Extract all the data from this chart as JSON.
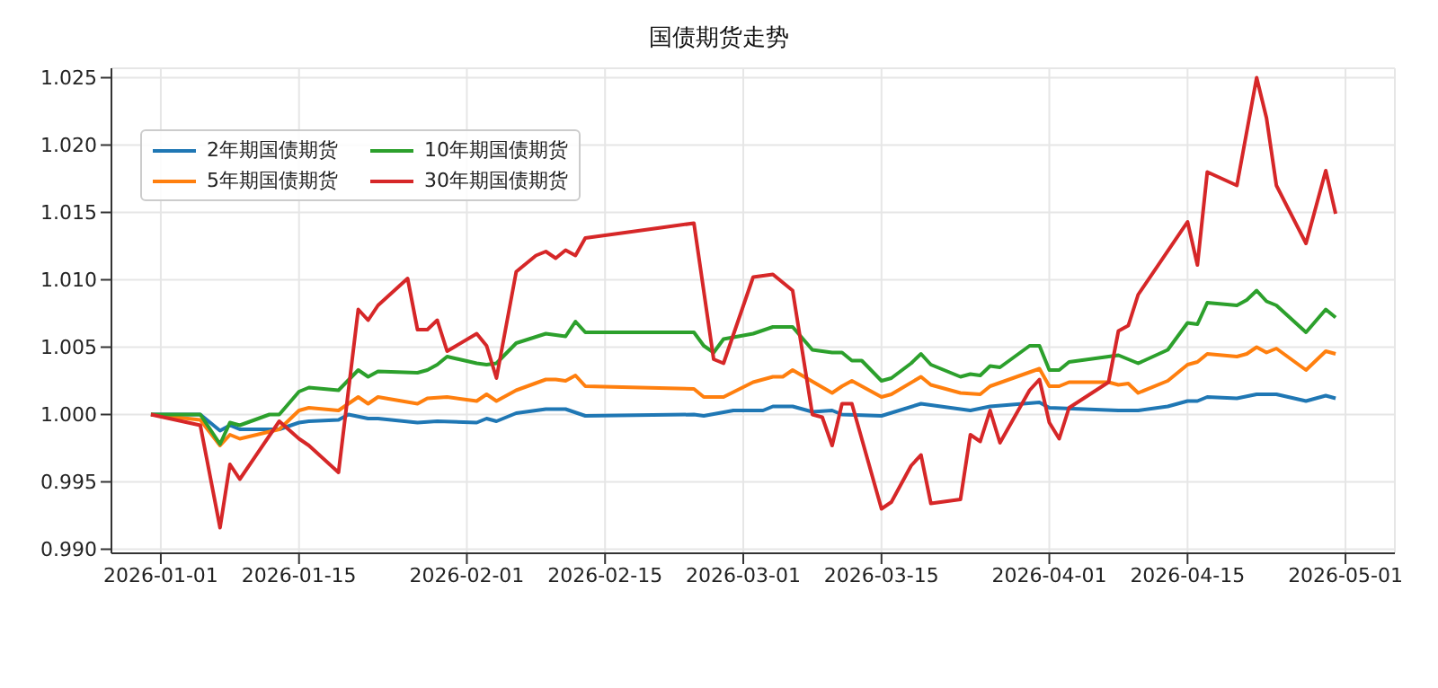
{
  "chart_data": {
    "type": "line",
    "title": "国债期货走势",
    "xlim": [
      "2025-12-27",
      "2026-05-06"
    ],
    "xticks": [
      "2026-01-01",
      "2026-01-15",
      "2026-02-01",
      "2026-02-15",
      "2026-03-01",
      "2026-03-15",
      "2026-04-01",
      "2026-04-15",
      "2026-05-01"
    ],
    "ylim": [
      0.9897,
      1.0257
    ],
    "yticks": [
      {
        "value": 0.99,
        "label": "0.990"
      },
      {
        "value": 0.995,
        "label": "0.995"
      },
      {
        "value": 1.0,
        "label": "1.000"
      },
      {
        "value": 1.005,
        "label": "1.005"
      },
      {
        "value": 1.01,
        "label": "1.010"
      },
      {
        "value": 1.015,
        "label": "1.015"
      },
      {
        "value": 1.02,
        "label": "1.020"
      },
      {
        "value": 1.025,
        "label": "1.025"
      }
    ],
    "grid": true,
    "legend": "top left",
    "marker": "none",
    "line_style": "solid",
    "series": [
      {
        "name": "2年期国债期货",
        "color": "#1f77b4",
        "x": [
          "2025-12-31",
          "2026-01-05",
          "2026-01-07",
          "2026-01-08",
          "2026-01-09",
          "2026-01-13",
          "2026-01-15",
          "2026-01-16",
          "2026-01-19",
          "2026-01-20",
          "2026-01-22",
          "2026-01-23",
          "2026-01-27",
          "2026-01-29",
          "2026-02-02",
          "2026-02-03",
          "2026-02-04",
          "2026-02-06",
          "2026-02-09",
          "2026-02-11",
          "2026-02-13",
          "2026-02-24",
          "2026-02-25",
          "2026-02-28",
          "2026-03-03",
          "2026-03-04",
          "2026-03-06",
          "2026-03-08",
          "2026-03-10",
          "2026-03-11",
          "2026-03-15",
          "2026-03-19",
          "2026-03-24",
          "2026-03-26",
          "2026-03-31",
          "2026-04-01",
          "2026-04-08",
          "2026-04-10",
          "2026-04-13",
          "2026-04-15",
          "2026-04-16",
          "2026-04-17",
          "2026-04-20",
          "2026-04-22",
          "2026-04-24",
          "2026-04-27",
          "2026-04-29",
          "2026-04-30"
        ],
        "values": [
          1.0,
          1.0,
          0.9988,
          0.9992,
          0.9989,
          0.9989,
          0.9994,
          0.9995,
          0.9996,
          1.0,
          0.9997,
          0.9997,
          0.9994,
          0.9995,
          0.9994,
          0.9997,
          0.9995,
          1.0001,
          1.0004,
          1.0004,
          0.9999,
          1.0,
          0.9999,
          1.0003,
          1.0003,
          1.0006,
          1.0006,
          1.0002,
          1.0003,
          1.0,
          0.9999,
          1.0008,
          1.0003,
          1.0006,
          1.0009,
          1.0005,
          1.0003,
          1.0003,
          1.0006,
          1.001,
          1.001,
          1.0013,
          1.0012,
          1.0015,
          1.0015,
          1.001,
          1.0014,
          1.0012
        ]
      },
      {
        "name": "5年期国债期货",
        "color": "#ff7f0e",
        "x": [
          "2025-12-31",
          "2026-01-05",
          "2026-01-07",
          "2026-01-08",
          "2026-01-09",
          "2026-01-13",
          "2026-01-15",
          "2026-01-16",
          "2026-01-19",
          "2026-01-21",
          "2026-01-22",
          "2026-01-23",
          "2026-01-27",
          "2026-01-28",
          "2026-01-30",
          "2026-02-02",
          "2026-02-03",
          "2026-02-04",
          "2026-02-06",
          "2026-02-09",
          "2026-02-10",
          "2026-02-11",
          "2026-02-12",
          "2026-02-13",
          "2026-02-24",
          "2026-02-25",
          "2026-02-27",
          "2026-03-02",
          "2026-03-04",
          "2026-03-05",
          "2026-03-06",
          "2026-03-10",
          "2026-03-11",
          "2026-03-12",
          "2026-03-15",
          "2026-03-16",
          "2026-03-19",
          "2026-03-20",
          "2026-03-23",
          "2026-03-25",
          "2026-03-26",
          "2026-03-31",
          "2026-04-01",
          "2026-04-02",
          "2026-04-03",
          "2026-04-07",
          "2026-04-08",
          "2026-04-09",
          "2026-04-10",
          "2026-04-13",
          "2026-04-15",
          "2026-04-16",
          "2026-04-17",
          "2026-04-20",
          "2026-04-21",
          "2026-04-22",
          "2026-04-23",
          "2026-04-24",
          "2026-04-27",
          "2026-04-29",
          "2026-04-30"
        ],
        "values": [
          1.0,
          0.9996,
          0.9977,
          0.9985,
          0.9982,
          0.9989,
          1.0003,
          1.0005,
          1.0003,
          1.0013,
          1.0008,
          1.0013,
          1.0008,
          1.0012,
          1.0013,
          1.001,
          1.0015,
          1.001,
          1.0018,
          1.0026,
          1.0026,
          1.0025,
          1.0029,
          1.0021,
          1.0019,
          1.0013,
          1.0013,
          1.0024,
          1.0028,
          1.0028,
          1.0033,
          1.0016,
          1.0021,
          1.0025,
          1.0013,
          1.0015,
          1.0028,
          1.0022,
          1.0016,
          1.0015,
          1.0021,
          1.0034,
          1.0021,
          1.0021,
          1.0024,
          1.0024,
          1.0022,
          1.0023,
          1.0016,
          1.0025,
          1.0037,
          1.0039,
          1.0045,
          1.0043,
          1.0045,
          1.005,
          1.0046,
          1.0049,
          1.0033,
          1.0047,
          1.0045
        ]
      },
      {
        "name": "10年期国债期货",
        "color": "#2ca02c",
        "x": [
          "2025-12-31",
          "2026-01-05",
          "2026-01-07",
          "2026-01-08",
          "2026-01-09",
          "2026-01-12",
          "2026-01-13",
          "2026-01-15",
          "2026-01-16",
          "2026-01-19",
          "2026-01-21",
          "2026-01-22",
          "2026-01-23",
          "2026-01-27",
          "2026-01-28",
          "2026-01-29",
          "2026-01-30",
          "2026-02-02",
          "2026-02-03",
          "2026-02-04",
          "2026-02-06",
          "2026-02-09",
          "2026-02-10",
          "2026-02-11",
          "2026-02-12",
          "2026-02-13",
          "2026-02-24",
          "2026-02-25",
          "2026-02-26",
          "2026-02-27",
          "2026-03-02",
          "2026-03-04",
          "2026-03-06",
          "2026-03-08",
          "2026-03-10",
          "2026-03-11",
          "2026-03-12",
          "2026-03-13",
          "2026-03-15",
          "2026-03-16",
          "2026-03-18",
          "2026-03-19",
          "2026-03-20",
          "2026-03-23",
          "2026-03-24",
          "2026-03-25",
          "2026-03-26",
          "2026-03-27",
          "2026-03-30",
          "2026-03-31",
          "2026-04-01",
          "2026-04-02",
          "2026-04-03",
          "2026-04-08",
          "2026-04-10",
          "2026-04-13",
          "2026-04-15",
          "2026-04-16",
          "2026-04-17",
          "2026-04-20",
          "2026-04-21",
          "2026-04-22",
          "2026-04-23",
          "2026-04-24",
          "2026-04-27",
          "2026-04-29",
          "2026-04-30"
        ],
        "values": [
          1.0,
          1.0,
          0.9978,
          0.9994,
          0.9992,
          1.0,
          1.0,
          1.0017,
          1.002,
          1.0018,
          1.0033,
          1.0028,
          1.0032,
          1.0031,
          1.0033,
          1.0037,
          1.0043,
          1.0038,
          1.0037,
          1.0038,
          1.0053,
          1.006,
          1.0059,
          1.0058,
          1.0069,
          1.0061,
          1.0061,
          1.0051,
          1.0046,
          1.0056,
          1.006,
          1.0065,
          1.0065,
          1.0048,
          1.0046,
          1.0046,
          1.004,
          1.004,
          1.0025,
          1.0027,
          1.0038,
          1.0045,
          1.0037,
          1.0028,
          1.003,
          1.0029,
          1.0036,
          1.0035,
          1.0051,
          1.0051,
          1.0033,
          1.0033,
          1.0039,
          1.0044,
          1.0038,
          1.0048,
          1.0068,
          1.0067,
          1.0083,
          1.0081,
          1.0085,
          1.0092,
          1.0084,
          1.0081,
          1.0061,
          1.0078,
          1.0072
        ]
      },
      {
        "name": "30年期国债期货",
        "color": "#d62728",
        "x": [
          "2025-12-31",
          "2026-01-05",
          "2026-01-07",
          "2026-01-08",
          "2026-01-09",
          "2026-01-13",
          "2026-01-15",
          "2026-01-16",
          "2026-01-19",
          "2026-01-21",
          "2026-01-22",
          "2026-01-23",
          "2026-01-26",
          "2026-01-27",
          "2026-01-28",
          "2026-01-29",
          "2026-01-30",
          "2026-02-02",
          "2026-02-03",
          "2026-02-04",
          "2026-02-06",
          "2026-02-08",
          "2026-02-09",
          "2026-02-10",
          "2026-02-11",
          "2026-02-12",
          "2026-02-13",
          "2026-02-24",
          "2026-02-26",
          "2026-02-27",
          "2026-03-02",
          "2026-03-04",
          "2026-03-06",
          "2026-03-08",
          "2026-03-09",
          "2026-03-10",
          "2026-03-11",
          "2026-03-12",
          "2026-03-15",
          "2026-03-16",
          "2026-03-18",
          "2026-03-19",
          "2026-03-20",
          "2026-03-23",
          "2026-03-24",
          "2026-03-25",
          "2026-03-26",
          "2026-03-27",
          "2026-03-30",
          "2026-03-31",
          "2026-04-01",
          "2026-04-02",
          "2026-04-03",
          "2026-04-07",
          "2026-04-08",
          "2026-04-09",
          "2026-04-10",
          "2026-04-15",
          "2026-04-16",
          "2026-04-17",
          "2026-04-20",
          "2026-04-22",
          "2026-04-23",
          "2026-04-24",
          "2026-04-27",
          "2026-04-29",
          "2026-04-30"
        ],
        "values": [
          1.0,
          0.9992,
          0.9916,
          0.9963,
          0.9952,
          0.9995,
          0.9982,
          0.9977,
          0.9957,
          1.0078,
          1.007,
          1.0081,
          1.0101,
          1.0063,
          1.0063,
          1.007,
          1.0047,
          1.006,
          1.0051,
          1.0027,
          1.0106,
          1.0118,
          1.0121,
          1.0116,
          1.0122,
          1.0118,
          1.0131,
          1.0142,
          1.0041,
          1.0038,
          1.0102,
          1.0104,
          1.0092,
          1.0,
          0.9998,
          0.9977,
          1.0008,
          1.0008,
          0.993,
          0.9935,
          0.9962,
          0.997,
          0.9934,
          0.9937,
          0.9985,
          0.998,
          1.0003,
          0.9979,
          1.0018,
          1.0026,
          0.9994,
          0.9982,
          1.0005,
          1.0024,
          1.0062,
          1.0066,
          1.0089,
          1.0143,
          1.0111,
          1.018,
          1.017,
          1.025,
          1.022,
          1.017,
          1.0127,
          1.0181,
          1.0149
        ]
      }
    ]
  }
}
